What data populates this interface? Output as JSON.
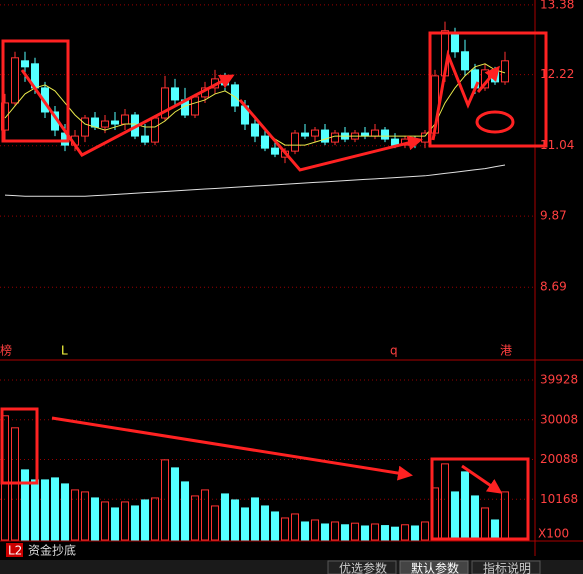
{
  "chart_data": {
    "type": "candlestick",
    "open": [
      11.3,
      11.75,
      12.45,
      12.4,
      12.0,
      11.6,
      11.25,
      11.05,
      11.2,
      11.5,
      11.35,
      11.45,
      11.4,
      11.55,
      11.2,
      11.1,
      11.5,
      12.0,
      11.8,
      11.55,
      11.85,
      12.0,
      12.15,
      12.05,
      11.7,
      11.4,
      11.2,
      11.0,
      10.85,
      10.95,
      11.25,
      11.2,
      11.3,
      11.1,
      11.25,
      11.15,
      11.25,
      11.2,
      11.3,
      11.15,
      11.05,
      11.15,
      11.1,
      11.25,
      12.2,
      12.9,
      12.6,
      12.3,
      12.0,
      12.3,
      12.1
    ],
    "high": [
      11.9,
      12.6,
      12.6,
      12.5,
      12.1,
      11.7,
      11.4,
      11.3,
      11.55,
      11.6,
      11.55,
      11.6,
      11.65,
      11.6,
      11.4,
      11.55,
      12.2,
      12.15,
      12.0,
      11.9,
      12.1,
      12.3,
      12.25,
      12.1,
      11.8,
      11.5,
      11.3,
      11.1,
      11.0,
      11.3,
      11.4,
      11.35,
      11.4,
      11.3,
      11.35,
      11.3,
      11.35,
      11.4,
      11.35,
      11.25,
      11.2,
      11.2,
      11.3,
      12.3,
      13.1,
      13.0,
      12.8,
      12.4,
      12.4,
      12.35,
      12.6
    ],
    "low": [
      11.1,
      11.7,
      12.1,
      11.9,
      11.5,
      11.2,
      10.95,
      10.95,
      11.1,
      11.3,
      11.25,
      11.3,
      11.3,
      11.15,
      11.05,
      11.05,
      11.45,
      11.7,
      11.5,
      11.5,
      11.75,
      11.9,
      11.95,
      11.6,
      11.3,
      11.1,
      10.95,
      10.85,
      10.75,
      10.9,
      11.15,
      11.1,
      11.05,
      11.05,
      11.1,
      11.1,
      11.15,
      11.15,
      11.1,
      11.0,
      11.0,
      11.0,
      11.0,
      11.2,
      12.1,
      12.5,
      12.2,
      11.9,
      11.95,
      12.05,
      12.05
    ],
    "close": [
      11.75,
      12.5,
      12.35,
      12.0,
      11.6,
      11.3,
      11.05,
      11.2,
      11.5,
      11.35,
      11.45,
      11.4,
      11.55,
      11.2,
      11.1,
      11.5,
      12.0,
      11.8,
      11.55,
      11.85,
      12.0,
      12.15,
      12.05,
      11.7,
      11.4,
      11.2,
      11.0,
      10.9,
      10.95,
      11.25,
      11.2,
      11.3,
      11.1,
      11.25,
      11.15,
      11.25,
      11.2,
      11.3,
      11.15,
      11.05,
      11.15,
      11.1,
      11.25,
      12.2,
      12.95,
      12.6,
      12.3,
      12.0,
      12.3,
      12.1,
      12.45
    ],
    "volume": [
      31000,
      28000,
      17500,
      15000,
      15000,
      15500,
      14000,
      12500,
      12000,
      10500,
      9500,
      8000,
      9500,
      8500,
      10000,
      10500,
      20000,
      18000,
      14500,
      11000,
      12500,
      8500,
      11500,
      10000,
      8000,
      10500,
      8500,
      7000,
      5500,
      6500,
      4500,
      5000,
      4000,
      4500,
      3800,
      4200,
      3500,
      4000,
      3600,
      3200,
      3800,
      3500,
      4500,
      13000,
      19000,
      12000,
      17000,
      11000,
      8000,
      5000,
      12000
    ],
    "moving_averages": [
      {
        "color": "#e8e84a",
        "values": [
          11.5,
          11.7,
          11.9,
          12.0,
          12.05,
          11.95,
          11.75,
          11.55,
          11.4,
          11.35,
          11.3,
          11.35,
          11.4,
          11.4,
          11.35,
          11.35,
          11.45,
          11.6,
          11.7,
          11.75,
          11.8,
          11.9,
          11.95,
          11.85,
          11.7,
          11.5,
          11.3,
          11.15,
          11.05,
          11.05,
          11.05,
          11.1,
          11.15,
          11.2,
          11.2,
          11.2,
          11.2,
          11.2,
          11.2,
          11.2,
          11.2,
          11.2,
          11.2,
          11.4,
          11.75,
          12.0,
          12.2,
          12.35,
          12.4,
          12.3,
          12.25
        ]
      },
      {
        "color": "#e0e0e0",
        "values": [
          10.22,
          10.21,
          10.2,
          10.2,
          10.2,
          10.2,
          10.2,
          10.2,
          10.2,
          10.21,
          10.22,
          10.23,
          10.24,
          10.25,
          10.26,
          10.27,
          10.28,
          10.29,
          10.3,
          10.31,
          10.32,
          10.33,
          10.34,
          10.35,
          10.36,
          10.37,
          10.38,
          10.39,
          10.4,
          10.41,
          10.42,
          10.43,
          10.44,
          10.45,
          10.46,
          10.47,
          10.48,
          10.49,
          10.5,
          10.51,
          10.52,
          10.53,
          10.54,
          10.56,
          10.58,
          10.6,
          10.62,
          10.64,
          10.66,
          10.69,
          10.72
        ]
      }
    ],
    "ylim": [
      7.73,
      13.46
    ],
    "yticks": [
      13.38,
      12.22,
      11.04,
      9.87,
      8.69
    ],
    "volume_ylim": [
      0,
      42428
    ],
    "volume_yticks": [
      39928,
      30008,
      20088,
      10168
    ],
    "volume_unit": "X100",
    "up_color": "#ff3232",
    "down_color": "#54ffff",
    "grid": true,
    "markers": [
      "榜",
      "L",
      "q",
      "港"
    ],
    "indicator_code": "L2",
    "indicator": "资金抄底",
    "tabs": [
      "优选参数",
      "默认参数",
      "指标说明"
    ]
  }
}
